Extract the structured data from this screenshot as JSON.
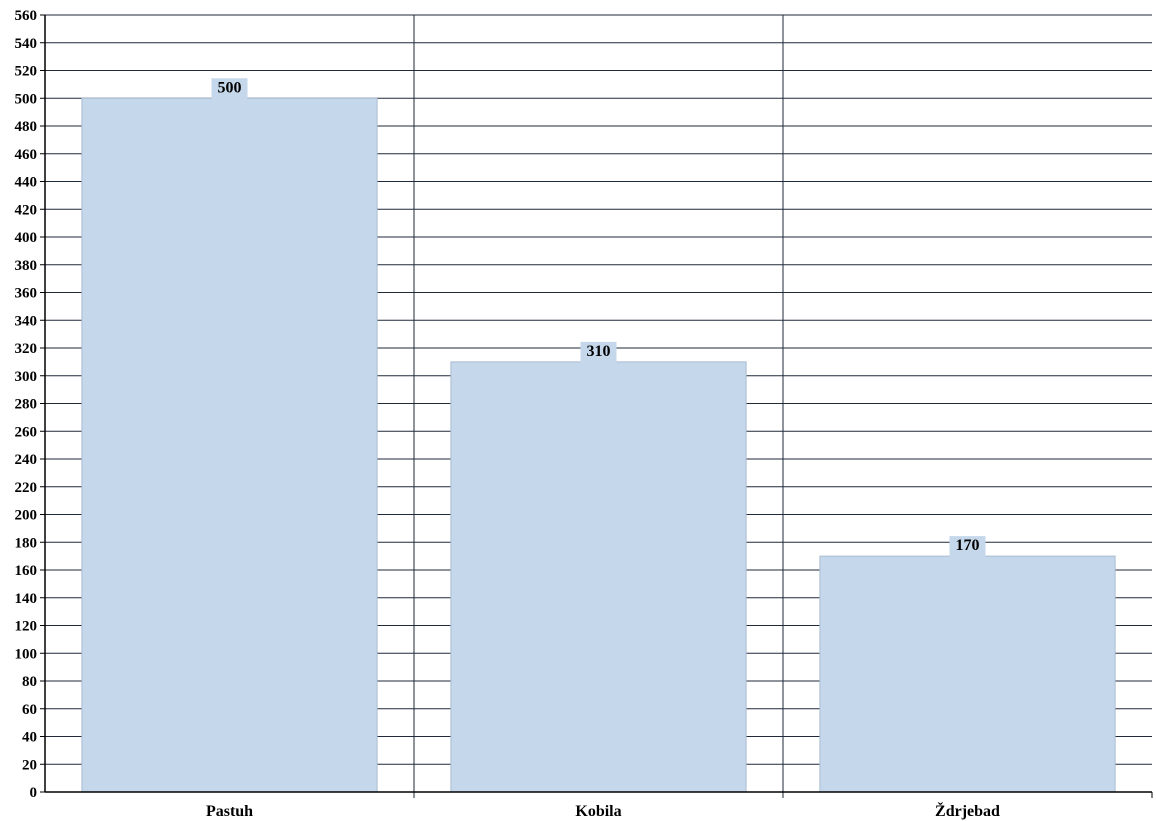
{
  "chart_data": {
    "type": "bar",
    "categories": [
      "Pastuh",
      "Kobila",
      "Ždrjebad"
    ],
    "values": [
      500,
      310,
      170
    ],
    "data_labels": [
      "500",
      "310",
      "170"
    ],
    "title": "",
    "xlabel": "",
    "ylabel": "",
    "ylim": [
      0,
      560
    ],
    "ytick_step": 20,
    "grid": "horizontal",
    "colors": {
      "bar": "#c5d7ea",
      "bar_edge": "#a9bccf",
      "grid": "#1f2a3a",
      "axis": "#000000",
      "label_bg": "#c5d7ea"
    }
  }
}
